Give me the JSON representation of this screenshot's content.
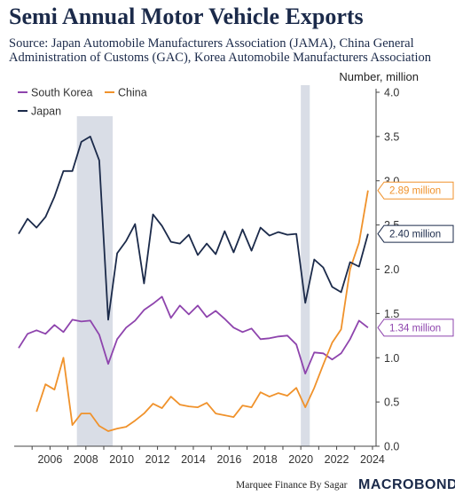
{
  "header": {
    "title": "Semi Annual Motor Vehicle Exports",
    "source": "Source: Japan Automobile Manufacturers Association (JAMA), China General Administration of Customs (GAC), Korea Automobile Manufacturers Association",
    "unit_label": "Number, million"
  },
  "footer": {
    "credit": "Marquee Finance By Sagar",
    "logo_text": "MACROBOND"
  },
  "chart_data": {
    "type": "line",
    "title": "Semi Annual Motor Vehicle Exports",
    "ylabel": "Number, million",
    "xlim": [
      2004.0,
      2024.2
    ],
    "ylim": [
      0,
      4.0
    ],
    "x_ticks": [
      2006,
      2008,
      2010,
      2012,
      2014,
      2016,
      2018,
      2020,
      2022,
      2024
    ],
    "x_tick_labels": [
      "2006",
      "2008",
      "2010",
      "2012",
      "2014",
      "2016",
      "2018",
      "2020",
      "2022",
      "2024"
    ],
    "y_ticks": [
      0,
      0.5,
      1.0,
      1.5,
      2.0,
      2.5,
      3.0,
      3.5,
      4.0
    ],
    "y_tick_labels": [
      "0.0",
      "0.5",
      "1.0",
      "1.5",
      "2.0",
      "2.5",
      "3.0",
      "3.5",
      "4.0"
    ],
    "recession_bands": [
      {
        "start": 2007.5,
        "end": 2009.5
      },
      {
        "start": 2020.0,
        "end": 2020.5
      }
    ],
    "legend": [
      "South Korea",
      "China",
      "Japan"
    ],
    "legend_position": "top-left",
    "series": [
      {
        "name": "South Korea",
        "color": "#8e44ad",
        "x": [
          2004.25,
          2004.75,
          2005.25,
          2005.75,
          2006.25,
          2006.75,
          2007.25,
          2007.75,
          2008.25,
          2008.75,
          2009.25,
          2009.75,
          2010.25,
          2010.75,
          2011.25,
          2011.75,
          2012.25,
          2012.75,
          2013.25,
          2013.75,
          2014.25,
          2014.75,
          2015.25,
          2015.75,
          2016.25,
          2016.75,
          2017.25,
          2017.75,
          2018.25,
          2018.75,
          2019.25,
          2019.75,
          2020.25,
          2020.75,
          2021.25,
          2021.75,
          2022.25,
          2022.75,
          2023.25,
          2023.75
        ],
        "values": [
          1.11,
          1.27,
          1.31,
          1.27,
          1.37,
          1.29,
          1.43,
          1.41,
          1.42,
          1.26,
          0.93,
          1.21,
          1.34,
          1.42,
          1.54,
          1.61,
          1.69,
          1.45,
          1.59,
          1.49,
          1.59,
          1.46,
          1.53,
          1.44,
          1.34,
          1.29,
          1.33,
          1.21,
          1.22,
          1.24,
          1.25,
          1.15,
          0.82,
          1.06,
          1.05,
          0.98,
          1.05,
          1.21,
          1.42,
          1.34
        ]
      },
      {
        "name": "China",
        "color": "#f0922b",
        "x": [
          2005.25,
          2005.75,
          2006.25,
          2006.75,
          2007.25,
          2007.75,
          2008.25,
          2008.75,
          2009.25,
          2009.75,
          2010.25,
          2010.75,
          2011.25,
          2011.75,
          2012.25,
          2012.75,
          2013.25,
          2013.75,
          2014.25,
          2014.75,
          2015.25,
          2015.75,
          2016.25,
          2016.75,
          2017.25,
          2017.75,
          2018.25,
          2018.75,
          2019.25,
          2019.75,
          2020.25,
          2020.75,
          2021.25,
          2021.75,
          2022.25,
          2022.75,
          2023.25,
          2023.75
        ],
        "values": [
          0.39,
          0.7,
          0.64,
          1.0,
          0.24,
          0.37,
          0.37,
          0.23,
          0.17,
          0.2,
          0.22,
          0.29,
          0.37,
          0.48,
          0.43,
          0.56,
          0.47,
          0.45,
          0.44,
          0.49,
          0.37,
          0.35,
          0.33,
          0.46,
          0.44,
          0.61,
          0.56,
          0.6,
          0.57,
          0.66,
          0.44,
          0.66,
          0.92,
          1.17,
          1.32,
          2.0,
          2.3,
          2.89
        ]
      },
      {
        "name": "Japan",
        "color": "#1b2a4a",
        "x": [
          2004.25,
          2004.75,
          2005.25,
          2005.75,
          2006.25,
          2006.75,
          2007.25,
          2007.75,
          2008.25,
          2008.75,
          2009.25,
          2009.75,
          2010.25,
          2010.75,
          2011.25,
          2011.75,
          2012.25,
          2012.75,
          2013.25,
          2013.75,
          2014.25,
          2014.75,
          2015.25,
          2015.75,
          2016.25,
          2016.75,
          2017.25,
          2017.75,
          2018.25,
          2018.75,
          2019.25,
          2019.75,
          2020.25,
          2020.75,
          2021.25,
          2021.75,
          2022.25,
          2022.75,
          2023.25,
          2023.75
        ],
        "values": [
          2.4,
          2.57,
          2.47,
          2.59,
          2.82,
          3.11,
          3.11,
          3.44,
          3.5,
          3.23,
          1.43,
          2.18,
          2.32,
          2.51,
          1.84,
          2.62,
          2.49,
          2.31,
          2.29,
          2.39,
          2.16,
          2.29,
          2.17,
          2.43,
          2.19,
          2.45,
          2.21,
          2.47,
          2.38,
          2.42,
          2.39,
          2.4,
          1.62,
          2.11,
          2.02,
          1.8,
          1.74,
          2.08,
          2.03,
          2.4
        ]
      }
    ],
    "callouts": [
      {
        "series": "China",
        "label": "2.89 million",
        "value": 2.89,
        "color": "#f0922b"
      },
      {
        "series": "Japan",
        "label": "2.40 million",
        "value": 2.4,
        "color": "#1b2a4a"
      },
      {
        "series": "South Korea",
        "label": "1.34 million",
        "value": 1.34,
        "color": "#8e44ad"
      }
    ]
  }
}
